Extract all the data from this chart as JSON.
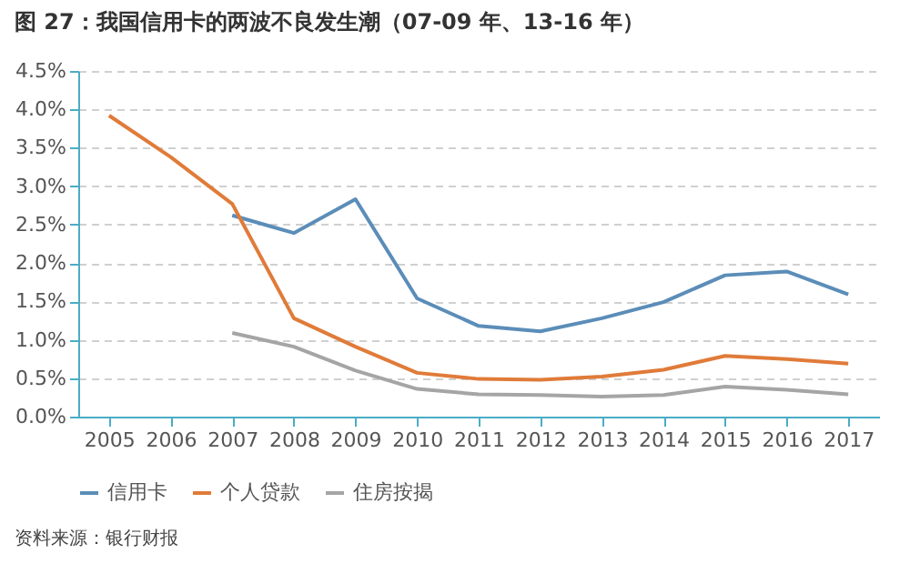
{
  "chart_data": {
    "type": "line",
    "title": "图 27：我国信用卡的两波不良发生潮（07-09 年、13-16 年）",
    "categories": [
      "2005",
      "2006",
      "2007",
      "2008",
      "2009",
      "2010",
      "2011",
      "2012",
      "2013",
      "2014",
      "2015",
      "2016",
      "2017"
    ],
    "series": [
      {
        "name": "信用卡",
        "color": "#5b8db8",
        "values": [
          null,
          null,
          2.62,
          2.39,
          2.83,
          1.54,
          1.18,
          1.11,
          1.28,
          1.49,
          1.84,
          1.89,
          1.59
        ]
      },
      {
        "name": "个人贷款",
        "color": "#e07b39",
        "values": [
          3.92,
          3.38,
          2.77,
          1.28,
          0.91,
          0.57,
          0.49,
          0.48,
          0.52,
          0.61,
          0.79,
          0.75,
          0.69
        ]
      },
      {
        "name": "住房按揭",
        "color": "#a5a5a5",
        "values": [
          null,
          null,
          1.09,
          0.91,
          0.6,
          0.36,
          0.29,
          0.28,
          0.26,
          0.28,
          0.39,
          0.35,
          0.29
        ]
      }
    ],
    "ylim": [
      0,
      4.5
    ],
    "yticks": [
      {
        "value": 0,
        "label": "0.0%"
      },
      {
        "value": 0.5,
        "label": "0.5%"
      },
      {
        "value": 1,
        "label": "1.0%"
      },
      {
        "value": 1.5,
        "label": "1.5%"
      },
      {
        "value": 2,
        "label": "2.0%"
      },
      {
        "value": 2.5,
        "label": "2.5%"
      },
      {
        "value": 3,
        "label": "3.0%"
      },
      {
        "value": 3.5,
        "label": "3.5%"
      },
      {
        "value": 4,
        "label": "4.0%"
      },
      {
        "value": 4.5,
        "label": "4.5%"
      }
    ],
    "grid": "y",
    "legend": "bottom",
    "marker": "none",
    "line_style": "solid",
    "annotations": [
      "资料来源：银行财报"
    ]
  }
}
